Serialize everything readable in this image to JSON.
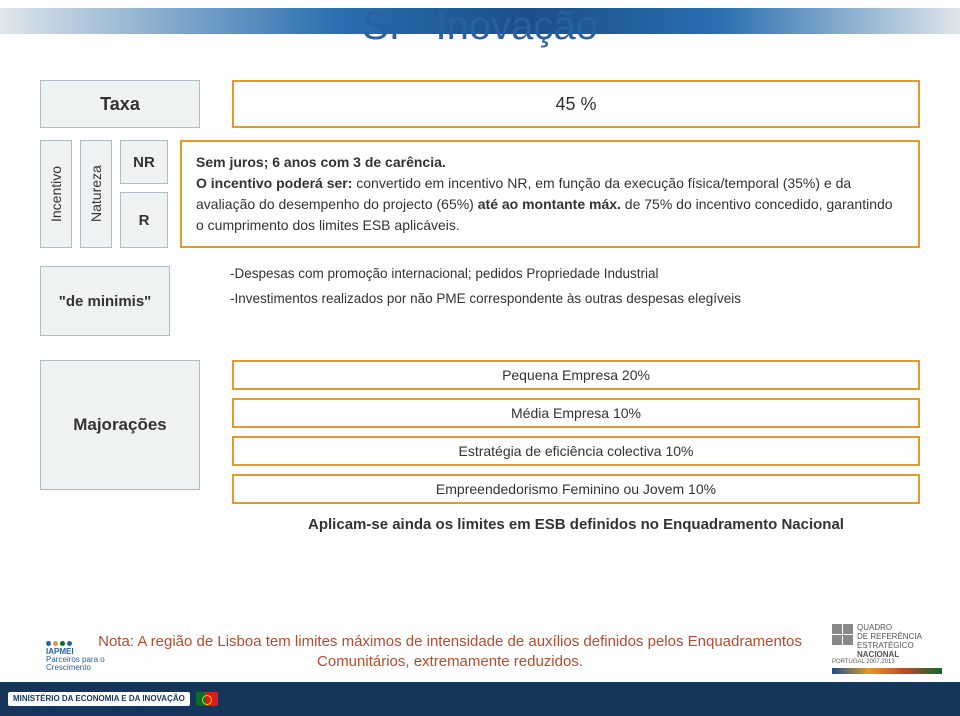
{
  "title": "SI - Inovação",
  "colors": {
    "title": "#2a5fa0",
    "box_border": "#e39a2c",
    "lbox_bg": "#eef2f2",
    "lbox_border": "#b0bec3",
    "note_color": "#b94a2e",
    "footer_bg": "#16355a"
  },
  "taxa": {
    "label": "Taxa",
    "value": "45 %"
  },
  "incentivo_label": "Incentivo",
  "natureza_label": "Natureza",
  "nr_labels": {
    "nr": "NR",
    "r": "R"
  },
  "desc": {
    "line1": "Sem juros; 6 anos com 3 de carência.",
    "line2a": "O incentivo poderá ser:",
    "line2b": " convertido em incentivo NR, em função da execução física/temporal (35%) e da avaliação do desempenho do projecto (65%) ",
    "line2c": "até ao montante máx.",
    "line2d": " de 75% do incentivo concedido, garantindo o cumprimento dos limites ESB aplicáveis."
  },
  "minimis": {
    "label": "\"de minimis\"",
    "items": [
      "-Despesas com promoção internacional; pedidos Propriedade Industrial",
      "-Investimentos realizados por não PME correspondente às outras despesas elegíveis"
    ]
  },
  "majoracoes": {
    "label": "Majorações",
    "boxes": [
      "Pequena Empresa 20%",
      "Média Empresa 10%",
      "Estratégia de eficiência colectiva 10%",
      "Empreendedorismo Feminino ou Jovem 10%"
    ],
    "aplica": "Aplicam-se ainda os limites em ESB definidos no Enquadramento Nacional"
  },
  "nota": "Nota: A região de Lisboa tem limites máximos de intensidade de auxílios definidos pelos Enquadramentos Comunitários, extremamente reduzidos.",
  "footer": {
    "iapmei": "IAPMEI",
    "iapmei_sub": "Parceiros para o Crescimento",
    "min": "MINISTÉRIO DA ECONOMIA E DA INOVAÇÃO"
  },
  "qren": {
    "l1": "QUADRO",
    "l2": "DE REFERÊNCIA",
    "l3": "ESTRATÉGICO",
    "l4": "NACIONAL",
    "l5": "PORTUGAL 2007.2013"
  }
}
